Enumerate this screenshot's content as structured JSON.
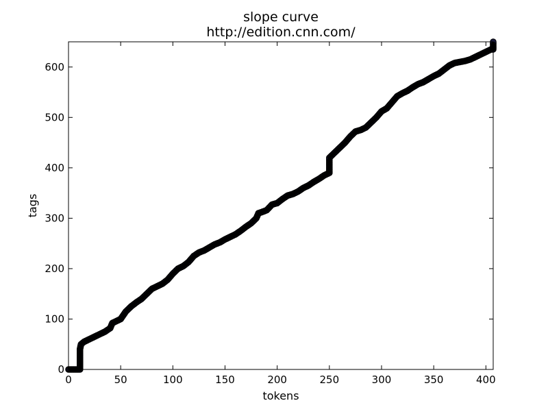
{
  "chart_data": {
    "type": "line",
    "title": "slope curve",
    "subtitle": "http://edition.cnn.com/",
    "xlabel": "tokens",
    "ylabel": "tags",
    "xlim": [
      0,
      407
    ],
    "ylim": [
      0,
      650
    ],
    "x_ticks": [
      0,
      50,
      100,
      150,
      200,
      250,
      300,
      350,
      400
    ],
    "y_ticks": [
      0,
      100,
      200,
      300,
      400,
      500,
      600
    ],
    "grid": false,
    "line_color": "#000000",
    "marker_color": "#1a1a3a",
    "series": [
      {
        "name": "slope",
        "x": [
          0,
          11,
          11,
          12,
          15,
          20,
          25,
          30,
          35,
          40,
          42,
          45,
          50,
          55,
          60,
          65,
          70,
          75,
          80,
          85,
          90,
          95,
          100,
          105,
          110,
          115,
          120,
          125,
          130,
          135,
          140,
          145,
          150,
          155,
          160,
          165,
          170,
          175,
          180,
          182,
          185,
          190,
          195,
          200,
          205,
          210,
          215,
          220,
          225,
          230,
          235,
          240,
          245,
          250,
          250,
          255,
          260,
          265,
          270,
          275,
          280,
          285,
          290,
          295,
          300,
          305,
          310,
          315,
          320,
          325,
          330,
          335,
          340,
          345,
          350,
          355,
          360,
          365,
          370,
          375,
          380,
          385,
          390,
          395,
          400,
          405,
          407,
          407
        ],
        "y": [
          0,
          0,
          40,
          50,
          55,
          60,
          65,
          70,
          75,
          82,
          92,
          95,
          100,
          115,
          125,
          133,
          140,
          150,
          160,
          165,
          170,
          178,
          190,
          200,
          205,
          213,
          225,
          232,
          236,
          242,
          248,
          252,
          258,
          263,
          268,
          275,
          283,
          290,
          300,
          310,
          312,
          316,
          327,
          330,
          338,
          345,
          348,
          353,
          360,
          365,
          372,
          378,
          385,
          390,
          420,
          430,
          440,
          450,
          462,
          472,
          475,
          480,
          490,
          500,
          512,
          518,
          530,
          542,
          548,
          553,
          560,
          566,
          570,
          576,
          582,
          587,
          595,
          603,
          608,
          610,
          612,
          615,
          620,
          625,
          630,
          635,
          635,
          650
        ]
      }
    ]
  }
}
